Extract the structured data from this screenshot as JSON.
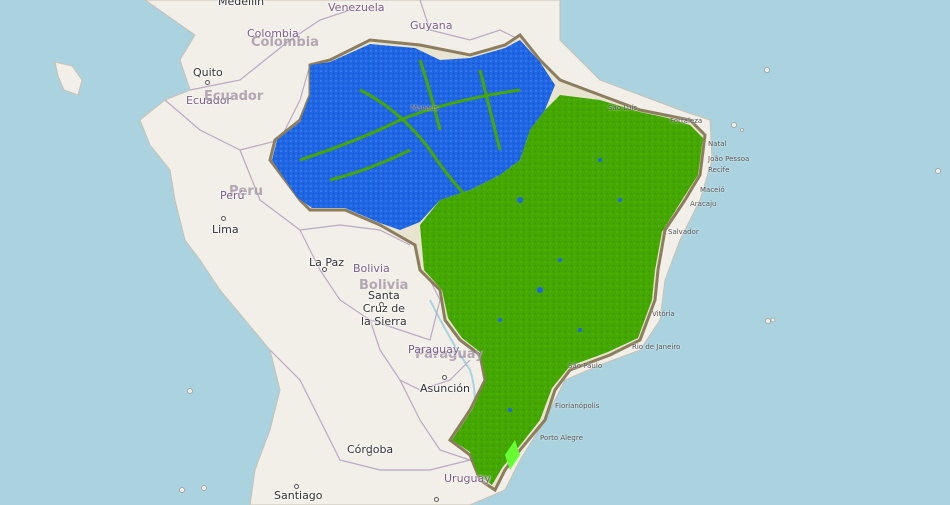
{
  "colors": {
    "ocean": "#aad3df",
    "land": "#f2efe9",
    "border": "#b9a9c2",
    "brazil_outline": "#8b7d5e",
    "low_risk_green": "#44a800",
    "high_risk_blue": "#1f66e5"
  },
  "countries": [
    {
      "id": "colombia",
      "name": "Colombia"
    },
    {
      "id": "colombia-big",
      "name": "Colombia"
    },
    {
      "id": "venezuela",
      "name": "Venezuela"
    },
    {
      "id": "guyana",
      "name": "Guyana"
    },
    {
      "id": "ecuador",
      "name": "Ecuador"
    },
    {
      "id": "ecuador-big",
      "name": "Ecuador"
    },
    {
      "id": "peru-big",
      "name": "Peru"
    },
    {
      "id": "peru",
      "name": "Perú"
    },
    {
      "id": "bolivia",
      "name": "Bolivia"
    },
    {
      "id": "bolivia-big",
      "name": "Bolivia"
    },
    {
      "id": "paraguay-big",
      "name": "Paraguay"
    },
    {
      "id": "paraguay",
      "name": "Paraguay"
    },
    {
      "id": "uruguay",
      "name": "Uruguay"
    }
  ],
  "cities": [
    {
      "id": "medellin",
      "name": "Medellín"
    },
    {
      "id": "quito",
      "name": "Quito"
    },
    {
      "id": "lima",
      "name": "Lima"
    },
    {
      "id": "la-paz",
      "name": "La Paz"
    },
    {
      "id": "santa-cruz",
      "name": "Santa\nCruz de\nla Sierra"
    },
    {
      "id": "asuncion",
      "name": "Asunción"
    },
    {
      "id": "cordoba",
      "name": "Córdoba"
    },
    {
      "id": "santiago",
      "name": "Santiago"
    }
  ],
  "coastal_cities": [
    {
      "id": "sao-luis",
      "name": "São Luís"
    },
    {
      "id": "fortaleza",
      "name": "Fortaleza"
    },
    {
      "id": "natal",
      "name": "Natal"
    },
    {
      "id": "joao-pessoa",
      "name": "João Pessoa"
    },
    {
      "id": "recife",
      "name": "Recife"
    },
    {
      "id": "maceio",
      "name": "Maceió"
    },
    {
      "id": "aracaju",
      "name": "Aracaju"
    },
    {
      "id": "salvador",
      "name": "Salvador"
    },
    {
      "id": "vitoria",
      "name": "Vitória"
    },
    {
      "id": "rio",
      "name": "Rio de Janeiro"
    },
    {
      "id": "sao-paulo",
      "name": "São Paulo"
    },
    {
      "id": "florianopolis",
      "name": "Florianópolis"
    },
    {
      "id": "porto-alegre",
      "name": "Porto Alegre"
    },
    {
      "id": "manaus",
      "name": "Manaus"
    }
  ]
}
